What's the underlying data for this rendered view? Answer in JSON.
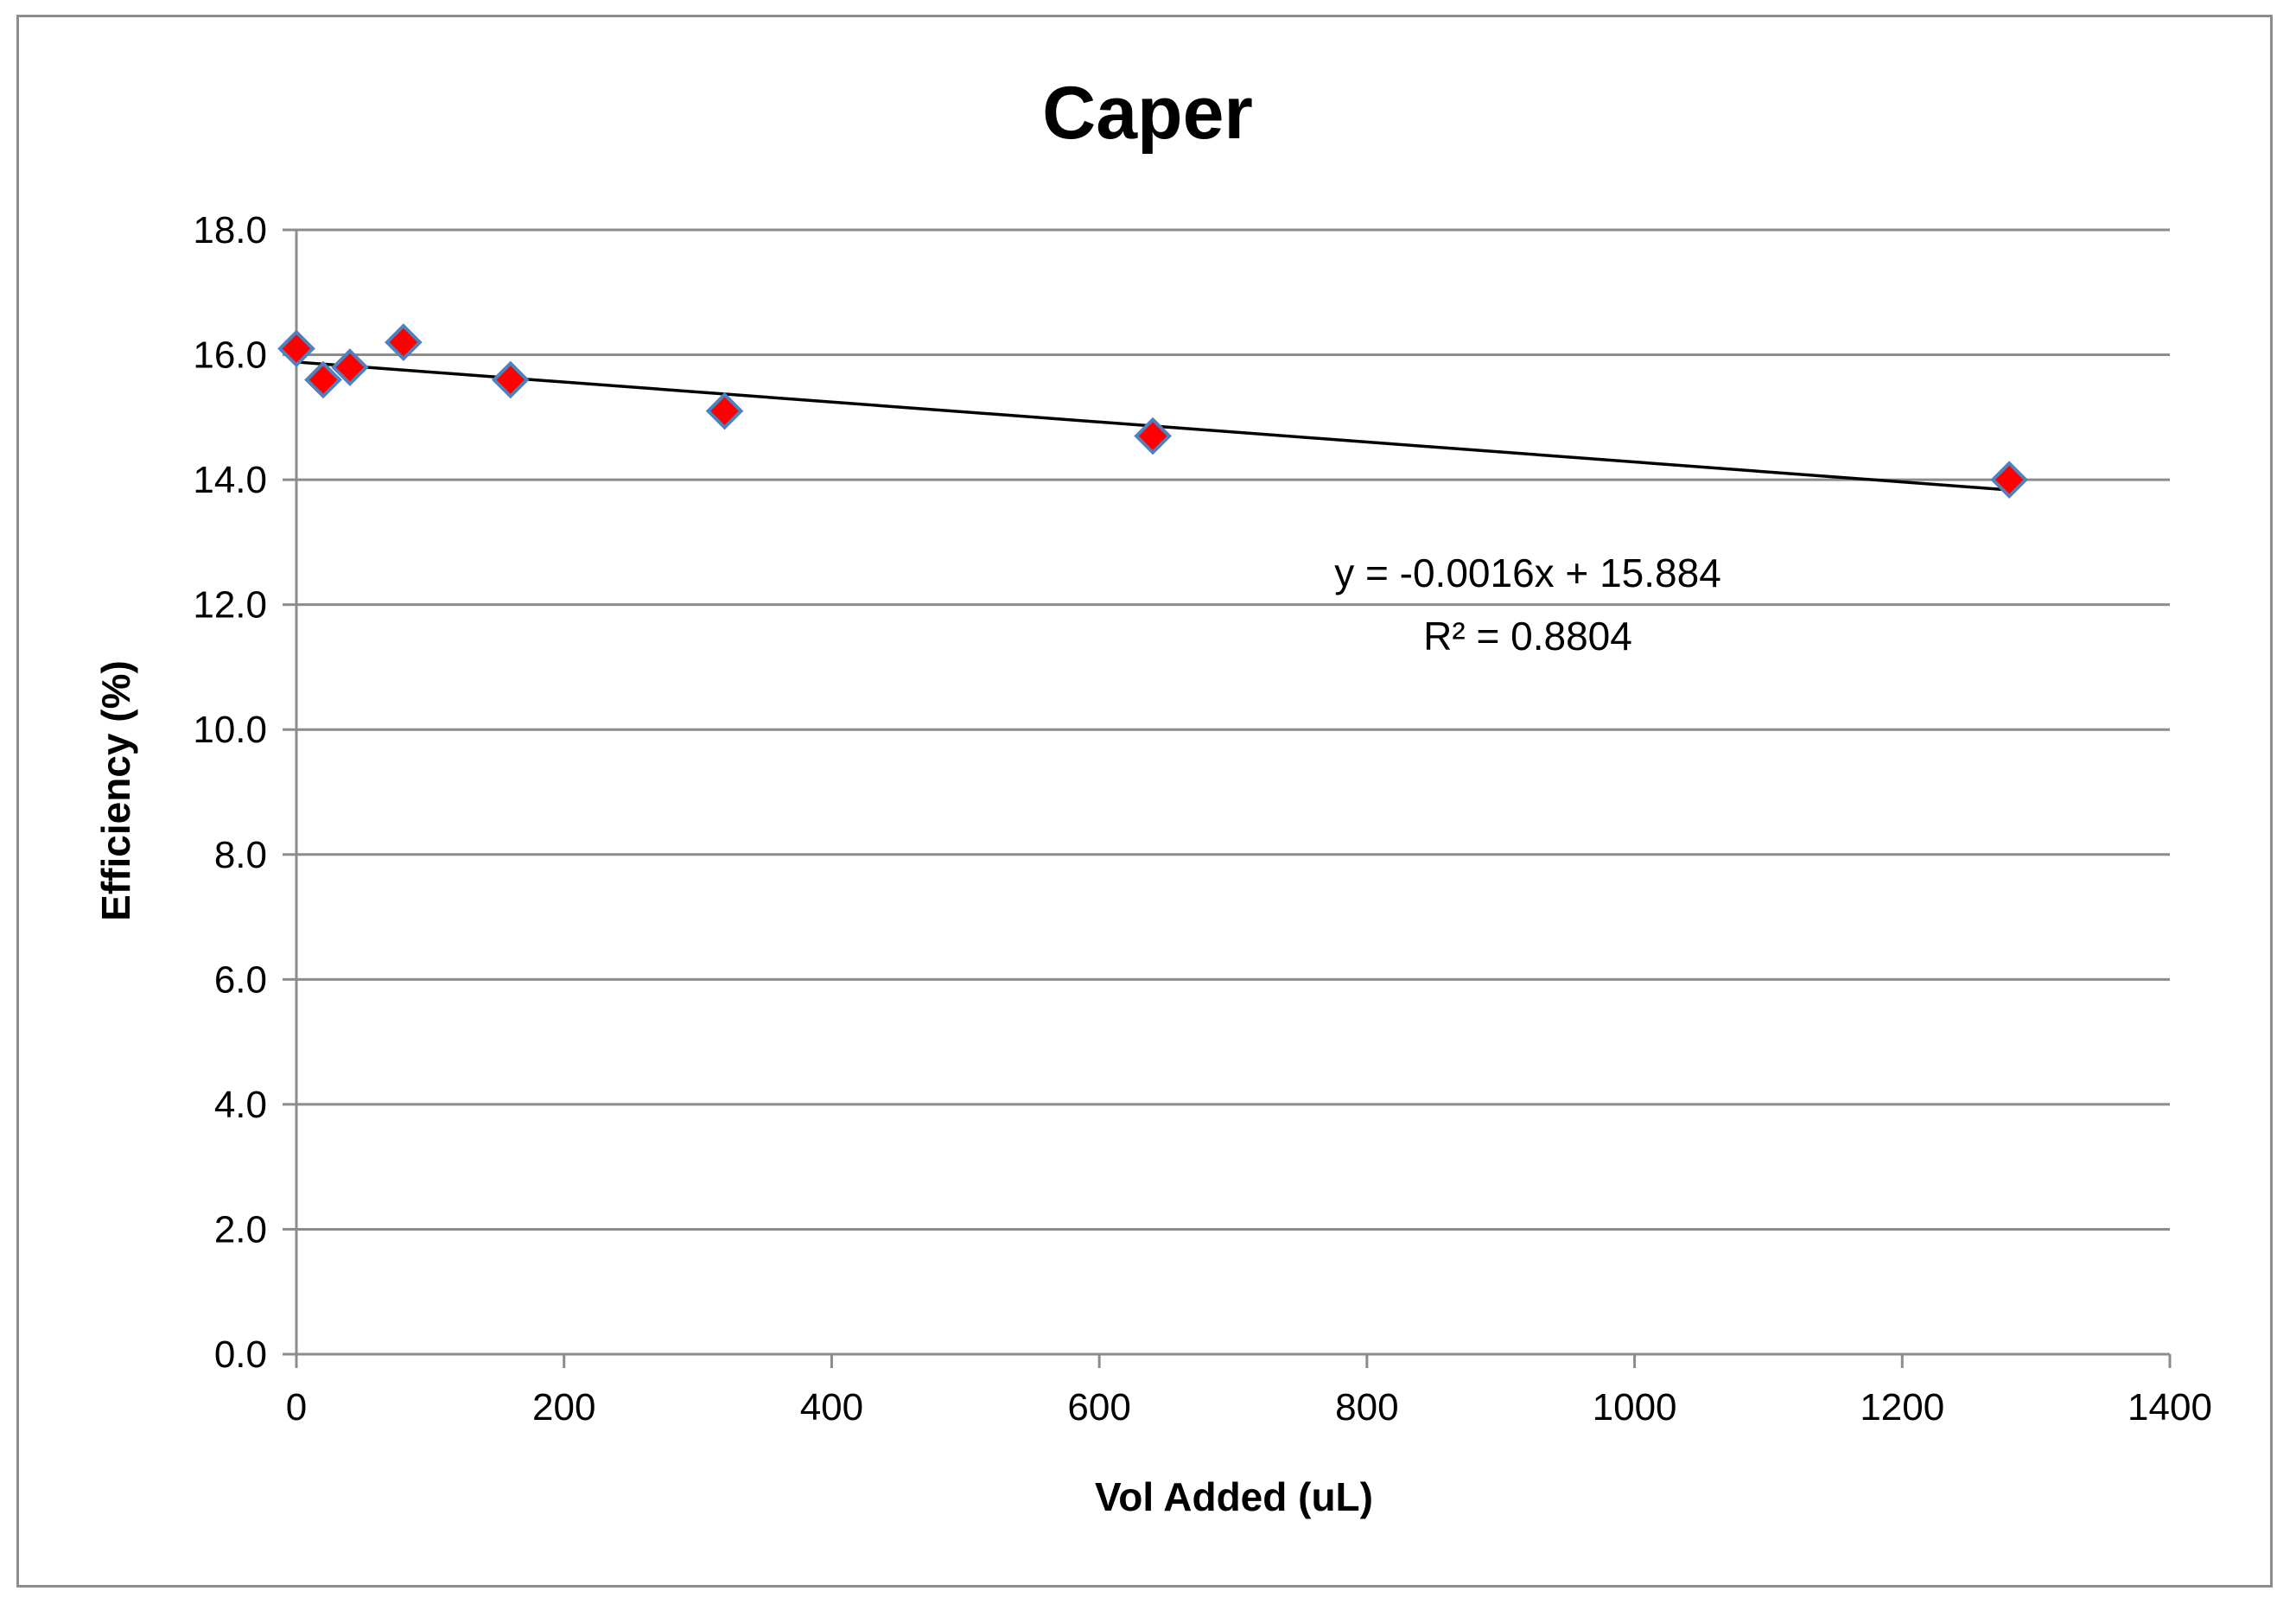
{
  "chart_data": {
    "type": "scatter",
    "title": "Caper",
    "xlabel": "Vol Added (uL)",
    "ylabel": "Efficiency (%)",
    "xlim": [
      0,
      1400
    ],
    "ylim": [
      0,
      18
    ],
    "x_ticks": [
      0,
      200,
      400,
      600,
      800,
      1000,
      1200,
      1400
    ],
    "y_ticks": [
      0,
      2,
      4,
      6,
      8,
      10,
      12,
      14,
      16,
      18
    ],
    "y_tick_labels": [
      "0.0",
      "2.0",
      "4.0",
      "6.0",
      "8.0",
      "10.0",
      "12.0",
      "14.0",
      "16.0",
      "18.0"
    ],
    "x_tick_labels": [
      "0",
      "200",
      "400",
      "600",
      "800",
      "1000",
      "1200",
      "1400"
    ],
    "grid": "horizontal",
    "series": [
      {
        "x": [
          0,
          20,
          40,
          80,
          160,
          320,
          640,
          1280
        ],
        "y": [
          16.1,
          15.6,
          15.8,
          16.2,
          15.6,
          15.1,
          14.7,
          14.0
        ],
        "marker": "diamond",
        "color": "#ff0000",
        "edge_color": "#4f81bd"
      }
    ],
    "trendline": {
      "type": "linear",
      "slope": -0.0016,
      "intercept": 15.884,
      "x_range": [
        0,
        1280
      ],
      "color": "#000000",
      "equation_text": "y = -0.0016x + 15.884",
      "r2_text": "R² = 0.8804"
    }
  }
}
